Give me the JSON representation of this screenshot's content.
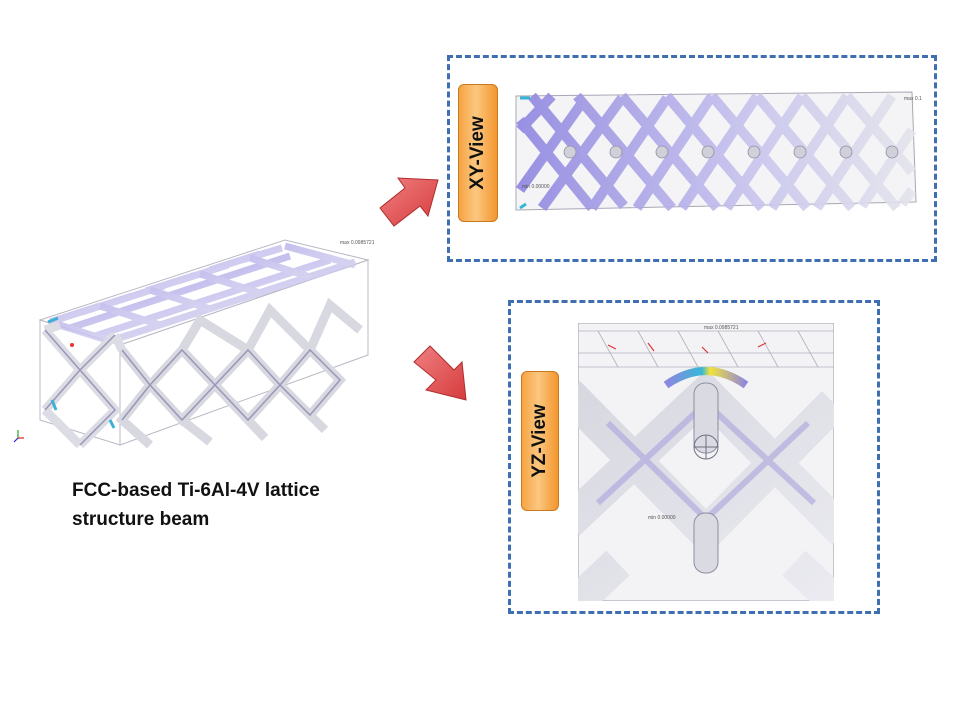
{
  "main_model": {
    "caption_line1": "FCC-based Ti-6Al-4V lattice",
    "caption_line2": "structure beam",
    "probe_label": "max 0.0985721"
  },
  "xy_view": {
    "label": "XY-View",
    "max_label": "max 0.1",
    "min_label": "min 0.00000"
  },
  "yz_view": {
    "label": "YZ-View",
    "max_label": "max 0.0985721",
    "min_label": "min 0.00000"
  },
  "icons": {
    "arrow": "right-arrow-icon",
    "axes": "axes-triad-icon"
  },
  "colors": {
    "frame_border": "#3e6fb0",
    "label_fill": "#f6a445",
    "arrow_fill": "#e0484a",
    "lattice_highlight": "#8f86e0"
  }
}
